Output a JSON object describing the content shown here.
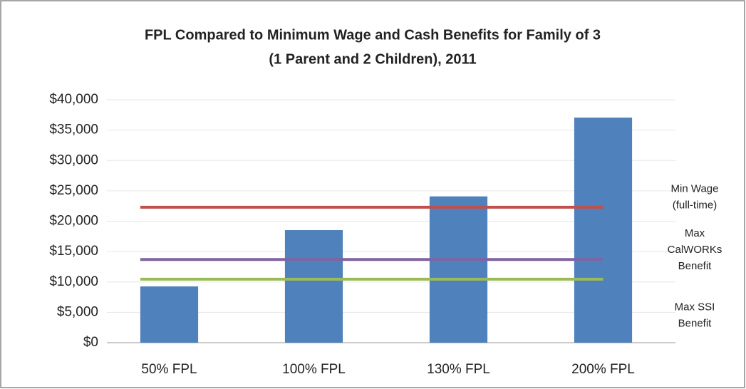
{
  "chart_data": {
    "type": "bar",
    "title": [
      "FPL Compared to Minimum Wage and Cash Benefits for Family of 3",
      "(1 Parent and 2 Children), 2011"
    ],
    "categories": [
      "50% FPL",
      "100% FPL",
      "130% FPL",
      "200% FPL"
    ],
    "values": [
      9265,
      18530,
      24089,
      37060
    ],
    "color": "#4f81bd",
    "lines": [
      {
        "label": [
          "Min Wage",
          "(full-time)"
        ],
        "color": "#c0504d",
        "value": 22300
      },
      {
        "label": [
          "Max",
          "CalWORKs",
          "Benefit"
        ],
        "color": "#8064a2",
        "value": 13700
      },
      {
        "label": [
          "Max SSI",
          "Benefit"
        ],
        "color": "#9bbb59",
        "value": 10450
      }
    ],
    "ylim": [
      0,
      40000
    ],
    "yticks": [
      {
        "value": 0,
        "label": "$0"
      },
      {
        "value": 5000,
        "label": "$5,000"
      },
      {
        "value": 10000,
        "label": "$10,000"
      },
      {
        "value": 15000,
        "label": "$15,000"
      },
      {
        "value": 20000,
        "label": "$20,000"
      },
      {
        "value": 25000,
        "label": "$25,000"
      },
      {
        "value": 30000,
        "label": "$30,000"
      },
      {
        "value": 35000,
        "label": "$35,000"
      },
      {
        "value": 40000,
        "label": "$40,000"
      }
    ],
    "grid": true
  }
}
